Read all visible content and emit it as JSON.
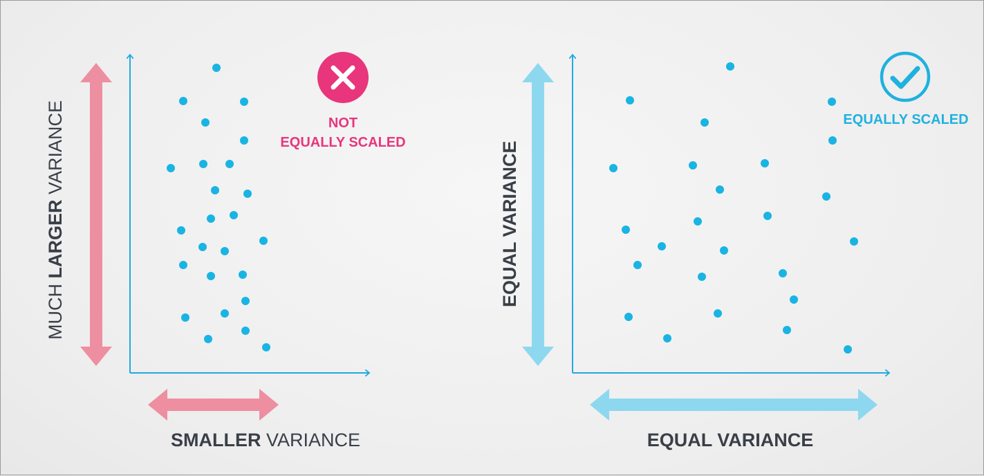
{
  "colors": {
    "dot": "#19b4e3",
    "axis": "#21a9e1",
    "pink": "#ed8fa0",
    "blue": "#8ed8ef",
    "bad": "#e8357c",
    "good": "#1fb1df"
  },
  "left_panel": {
    "y_label_bold": "LARGER",
    "y_label_pre": "MUCH",
    "y_label_post": "VARIANCE",
    "x_label_bold": "SMALLER",
    "x_label_post": "VARIANCE",
    "status_icon": "x-icon",
    "status_line1": "NOT",
    "status_line2": "EQUALLY SCALED"
  },
  "right_panel": {
    "y_label": "EQUAL VARIANCE",
    "x_label": "EQUAL VARIANCE",
    "status_icon": "check-icon",
    "status_text": "EQUALLY SCALED"
  }
}
